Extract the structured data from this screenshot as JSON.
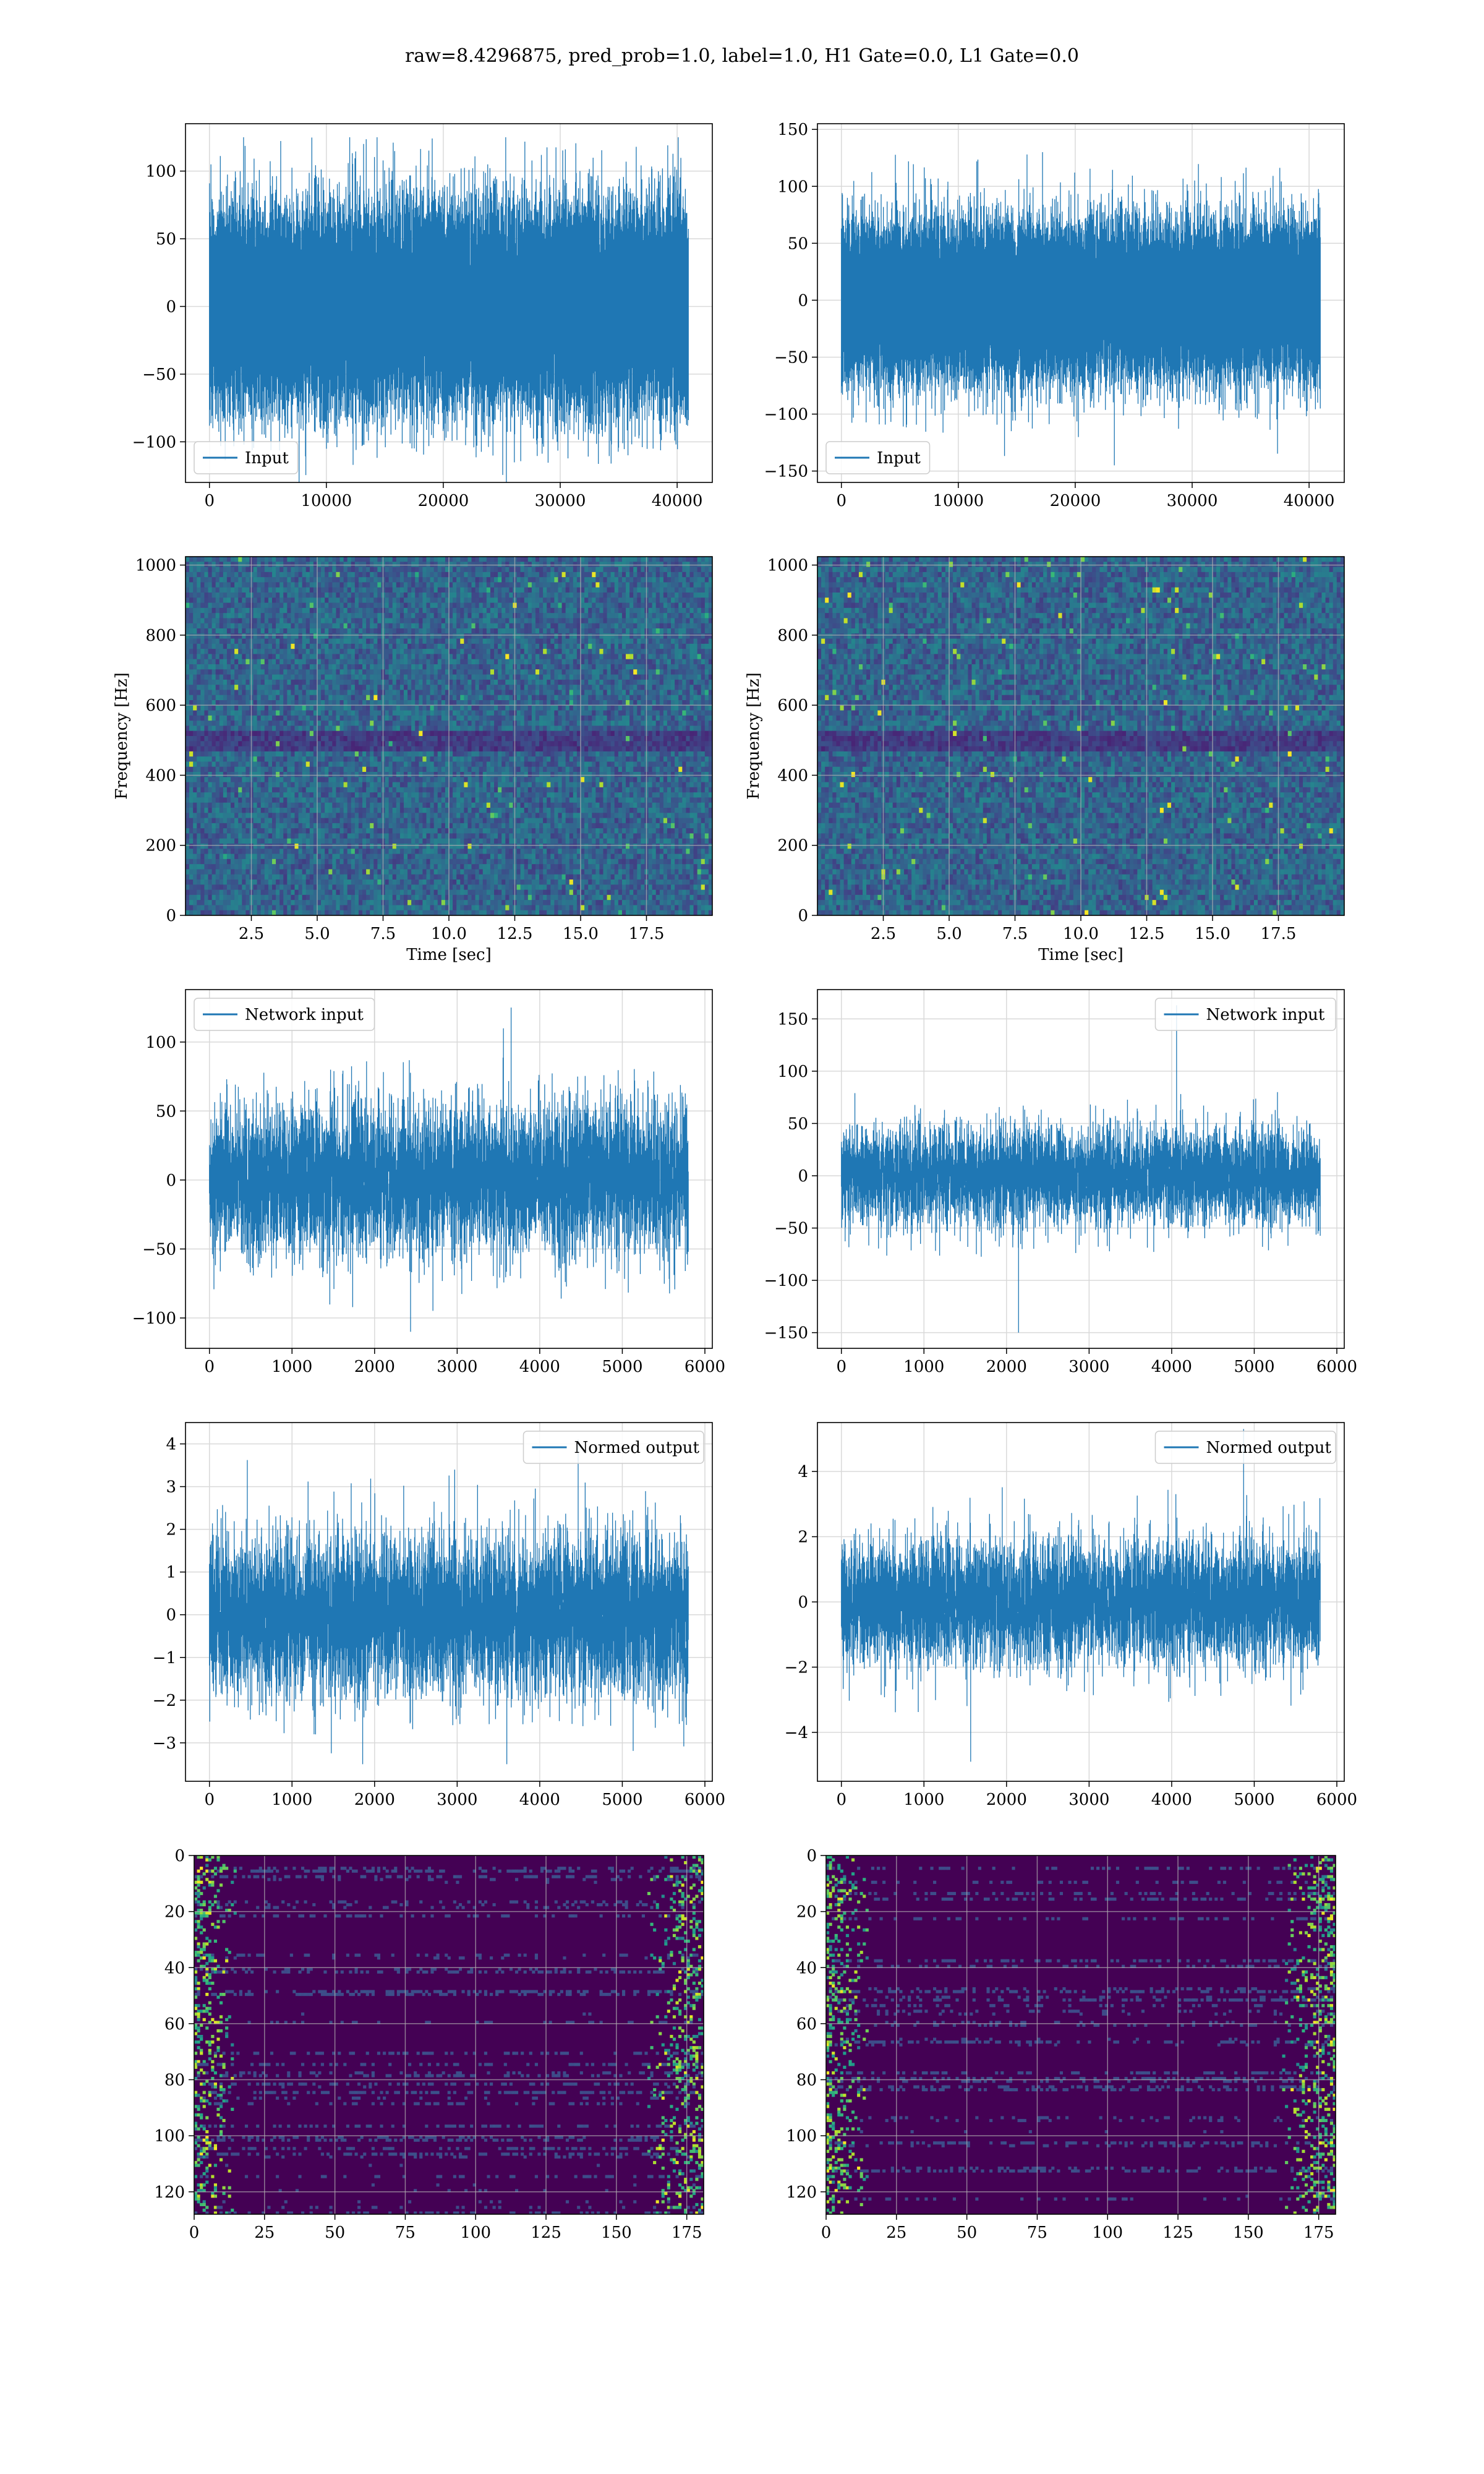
{
  "figure": {
    "suptitle": "raw=8.4296875, pred_prob=1.0, label=1.0, H1 Gate=0.0, L1 Gate=0.0"
  },
  "colors": {
    "line": "#1f77b4",
    "grid": "#d9d9d9",
    "viridis_low": "#440154",
    "viridis_high": "#fde725"
  },
  "chart_data": [
    {
      "id": "h1-input",
      "type": "line",
      "series": [
        {
          "name": "Input",
          "length": 40960,
          "amplitude_std": 32,
          "min": -130,
          "max": 125
        }
      ],
      "xlim": [
        -2048,
        43008
      ],
      "ylim": [
        -130,
        135
      ],
      "xticks": [
        0,
        10000,
        20000,
        30000,
        40000
      ],
      "yticks": [
        -100,
        -50,
        0,
        50,
        100
      ],
      "legend": "lower left",
      "grid": true
    },
    {
      "id": "l1-input",
      "type": "line",
      "series": [
        {
          "name": "Input",
          "length": 40960,
          "amplitude_std": 30,
          "min": -145,
          "max": 130
        }
      ],
      "xlim": [
        -2048,
        43008
      ],
      "ylim": [
        -160,
        155
      ],
      "xticks": [
        0,
        10000,
        20000,
        30000,
        40000
      ],
      "yticks": [
        -150,
        -100,
        -50,
        0,
        50,
        100,
        150
      ],
      "legend": "lower left",
      "grid": true
    },
    {
      "id": "h1-spectrogram",
      "type": "heatmap",
      "colormap": "viridis",
      "xlim": [
        0,
        20
      ],
      "ylim": [
        0,
        1024
      ],
      "xticks": [
        2.5,
        5.0,
        7.5,
        10.0,
        12.5,
        15.0,
        17.5
      ],
      "yticks": [
        0,
        200,
        400,
        600,
        800,
        1000
      ],
      "xlabel": "Time [sec]",
      "ylabel": "Frequency [Hz]",
      "grid": true
    },
    {
      "id": "l1-spectrogram",
      "type": "heatmap",
      "colormap": "viridis",
      "xlim": [
        0,
        20
      ],
      "ylim": [
        0,
        1024
      ],
      "xticks": [
        2.5,
        5.0,
        7.5,
        10.0,
        12.5,
        15.0,
        17.5
      ],
      "yticks": [
        0,
        200,
        400,
        600,
        800,
        1000
      ],
      "xlabel": "Time [sec]",
      "ylabel": "Frequency [Hz]",
      "grid": true
    },
    {
      "id": "h1-network-input",
      "type": "line",
      "series": [
        {
          "name": "Network input",
          "length": 5800,
          "amplitude_std": 26,
          "min": -110,
          "max": 125
        }
      ],
      "xlim": [
        -290,
        6090
      ],
      "ylim": [
        -122,
        138
      ],
      "xticks": [
        0,
        1000,
        2000,
        3000,
        4000,
        5000,
        6000
      ],
      "yticks": [
        -100,
        -50,
        0,
        50,
        100
      ],
      "legend": "upper left",
      "grid": true
    },
    {
      "id": "l1-network-input",
      "type": "line",
      "series": [
        {
          "name": "Network input",
          "length": 5800,
          "amplitude_std": 22,
          "min": -150,
          "max": 163
        }
      ],
      "xlim": [
        -290,
        6090
      ],
      "ylim": [
        -165,
        178
      ],
      "xticks": [
        0,
        1000,
        2000,
        3000,
        4000,
        5000,
        6000
      ],
      "yticks": [
        -150,
        -100,
        -50,
        0,
        50,
        100,
        150
      ],
      "legend": "upper right",
      "grid": true
    },
    {
      "id": "h1-normed-output",
      "type": "line",
      "series": [
        {
          "name": "Normed output",
          "length": 5800,
          "amplitude_std": 0.9,
          "min": -3.5,
          "max": 4.1
        }
      ],
      "xlim": [
        -290,
        6090
      ],
      "ylim": [
        -3.9,
        4.5
      ],
      "xticks": [
        0,
        1000,
        2000,
        3000,
        4000,
        5000,
        6000
      ],
      "yticks": [
        -3,
        -2,
        -1,
        0,
        1,
        2,
        3,
        4
      ],
      "legend": "upper right",
      "grid": true
    },
    {
      "id": "l1-normed-output",
      "type": "line",
      "series": [
        {
          "name": "Normed output",
          "length": 5800,
          "amplitude_std": 0.9,
          "min": -4.9,
          "max": 5.3
        }
      ],
      "xlim": [
        -290,
        6090
      ],
      "ylim": [
        -5.5,
        5.5
      ],
      "xticks": [
        0,
        1000,
        2000,
        3000,
        4000,
        5000,
        6000
      ],
      "yticks": [
        -4,
        -2,
        0,
        2,
        4
      ],
      "legend": "upper right",
      "grid": true
    },
    {
      "id": "h1-feature-map",
      "type": "heatmap",
      "colormap": "viridis",
      "rows": 128,
      "cols": 181,
      "xlim": [
        0,
        181
      ],
      "ylim": [
        128,
        0
      ],
      "xticks": [
        0,
        25,
        50,
        75,
        100,
        125,
        150,
        175
      ],
      "yticks": [
        0,
        20,
        40,
        60,
        80,
        100,
        120
      ],
      "grid": true
    },
    {
      "id": "l1-feature-map",
      "type": "heatmap",
      "colormap": "viridis",
      "rows": 128,
      "cols": 181,
      "xlim": [
        0,
        181
      ],
      "ylim": [
        128,
        0
      ],
      "xticks": [
        0,
        25,
        50,
        75,
        100,
        125,
        150,
        175
      ],
      "yticks": [
        0,
        20,
        40,
        60,
        80,
        100,
        120
      ],
      "grid": true
    }
  ]
}
